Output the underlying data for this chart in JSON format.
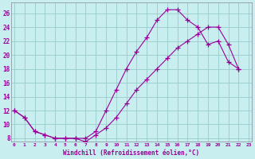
{
  "xlabel": "Windchill (Refroidissement éolien,°C)",
  "line1_x": [
    0,
    1,
    2,
    3,
    4,
    5,
    6,
    7,
    8,
    9,
    10,
    11,
    12,
    13,
    14,
    15,
    16,
    17,
    18,
    19,
    20,
    21,
    22
  ],
  "line1_y": [
    12,
    11,
    9,
    8.5,
    8,
    8,
    8,
    8,
    9,
    12,
    15,
    18,
    20.5,
    22.5,
    25,
    26.5,
    26.5,
    25,
    24,
    21.5,
    22,
    19,
    18
  ],
  "line2_x": [
    0,
    1,
    2,
    3,
    4,
    5,
    6,
    7,
    8,
    9,
    10,
    11,
    12,
    13,
    14,
    15,
    16,
    17,
    18,
    19,
    20,
    21,
    22
  ],
  "line2_y": [
    12,
    11,
    9,
    8.5,
    8,
    8,
    8,
    7.5,
    8.5,
    9.5,
    11,
    13,
    15,
    16.5,
    18,
    19.5,
    21,
    22,
    23,
    24,
    24,
    21.5,
    18
  ],
  "line_color": "#990099",
  "bg_color": "#c8eef0",
  "grid_color": "#99cccc",
  "xlim_min": -0.3,
  "xlim_max": 23.3,
  "ylim_min": 7.5,
  "ylim_max": 27.5,
  "yticks": [
    8,
    10,
    12,
    14,
    16,
    18,
    20,
    22,
    24,
    26
  ],
  "xticks": [
    0,
    1,
    2,
    3,
    4,
    5,
    6,
    7,
    8,
    9,
    10,
    11,
    12,
    13,
    14,
    15,
    16,
    17,
    18,
    19,
    20,
    21,
    22,
    23
  ]
}
